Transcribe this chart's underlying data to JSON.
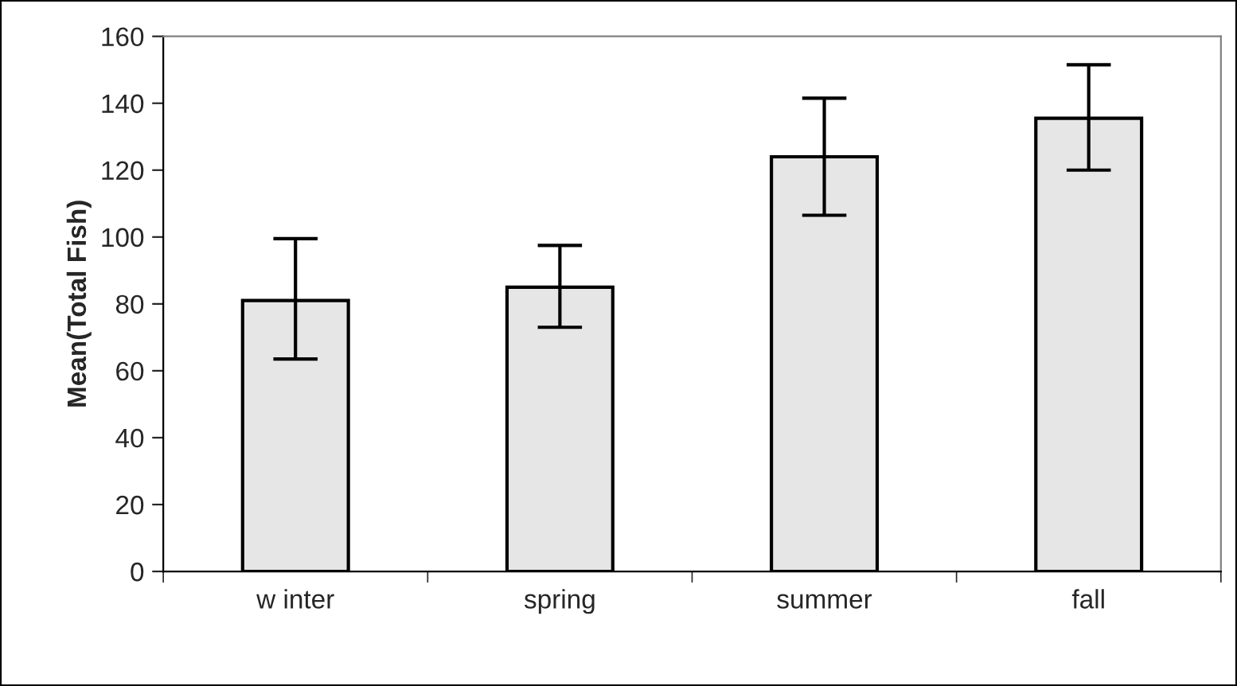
{
  "chart_data": {
    "type": "bar",
    "ylabel": "Mean(Total Fish)",
    "categories": [
      "w inter",
      "spring",
      "summer",
      "fall"
    ],
    "values": [
      81,
      85,
      124,
      135.5
    ],
    "errors": [
      [
        63.5,
        99.5
      ],
      [
        73,
        97.5
      ],
      [
        106.5,
        141.5
      ],
      [
        120,
        151.5
      ]
    ],
    "color": "#e6e6e6",
    "ylim": [
      0,
      160
    ],
    "yticks": [
      0,
      20,
      40,
      60,
      80,
      100,
      120,
      140,
      160
    ],
    "grid": false
  }
}
